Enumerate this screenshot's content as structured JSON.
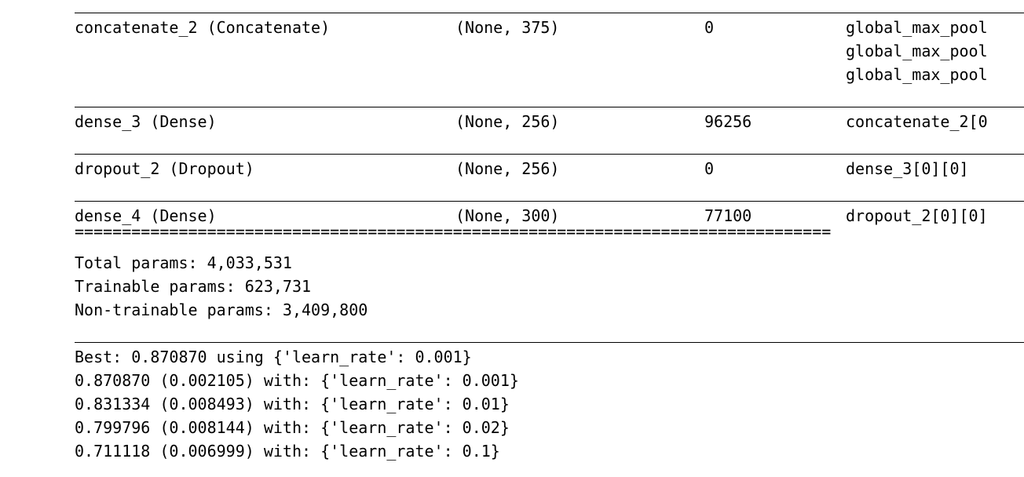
{
  "layers": [
    {
      "name": "concatenate_2 (Concatenate)",
      "shape": "(None, 375)",
      "params": "0",
      "connected": [
        "global_max_pool",
        "global_max_pool",
        "global_max_pool"
      ]
    },
    {
      "name": "dense_3 (Dense)",
      "shape": "(None, 256)",
      "params": "96256",
      "connected": [
        "concatenate_2[0"
      ]
    },
    {
      "name": "dropout_2 (Dropout)",
      "shape": "(None, 256)",
      "params": "0",
      "connected": [
        "dense_3[0][0]"
      ]
    },
    {
      "name": "dense_4 (Dense)",
      "shape": "(None, 300)",
      "params": "77100",
      "connected": [
        "dropout_2[0][0]"
      ]
    }
  ],
  "separator": "================================================================================",
  "summary": {
    "total": "Total params: 4,033,531",
    "trainable": "Trainable params: 623,731",
    "non_trainable": "Non-trainable params: 3,409,800"
  },
  "results": {
    "best": "Best: 0.870870 using {'learn_rate': 0.001}",
    "lines": [
      "0.870870 (0.002105) with: {'learn_rate': 0.001}",
      "0.831334 (0.008493) with: {'learn_rate': 0.01}",
      "0.799796 (0.008144) with: {'learn_rate': 0.02}",
      "0.711118 (0.006999) with: {'learn_rate': 0.1}"
    ]
  }
}
